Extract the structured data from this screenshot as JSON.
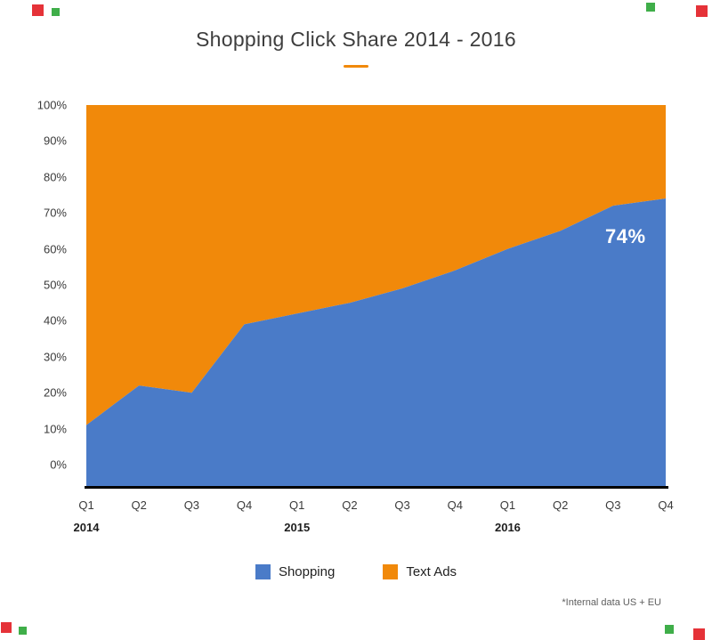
{
  "page": {
    "title": "Shopping Click Share 2014 - 2016",
    "footnote": "*Internal data US + EU"
  },
  "annotation": {
    "text": "74%"
  },
  "legend": [
    {
      "label": "Shopping",
      "color": "#4a7bc8"
    },
    {
      "label": "Text Ads",
      "color": "#f1890a"
    }
  ],
  "chart_data": {
    "type": "area",
    "stacked": true,
    "title": "Shopping Click Share 2014 - 2016",
    "categories": [
      "Q1",
      "Q2",
      "Q3",
      "Q4",
      "Q1",
      "Q2",
      "Q3",
      "Q4",
      "Q1",
      "Q2",
      "Q3",
      "Q4"
    ],
    "year_groups": [
      {
        "label": "2014",
        "start_index": 0
      },
      {
        "label": "2015",
        "start_index": 4
      },
      {
        "label": "2016",
        "start_index": 8
      }
    ],
    "series": [
      {
        "name": "Shopping",
        "color": "#4a7bc8",
        "values": [
          11,
          22,
          20,
          39,
          42,
          45,
          49,
          54,
          60,
          65,
          72,
          74
        ]
      },
      {
        "name": "Text Ads",
        "color": "#f1890a",
        "values": [
          89,
          78,
          80,
          61,
          58,
          55,
          51,
          46,
          40,
          35,
          28,
          26
        ]
      }
    ],
    "y_ticks": [
      "0%",
      "10%",
      "20%",
      "30%",
      "40%",
      "50%",
      "60%",
      "70%",
      "80%",
      "90%",
      "100%"
    ],
    "ylim": [
      0,
      100
    ],
    "grid": false,
    "legend_position": "bottom",
    "annotation": {
      "text": "74%",
      "series": "Shopping",
      "category_index": 11
    }
  }
}
